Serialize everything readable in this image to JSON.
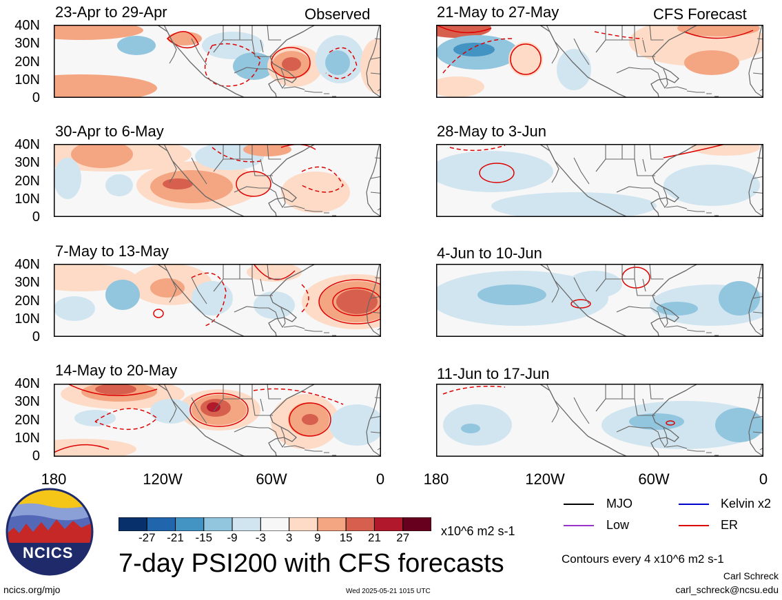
{
  "header": {
    "observed_label": "Observed",
    "forecast_label": "CFS Forecast"
  },
  "panels": [
    {
      "id": "p1",
      "title": "23-Apr to 29-Apr",
      "column": "observed"
    },
    {
      "id": "p2",
      "title": "30-Apr to 6-May",
      "column": "observed"
    },
    {
      "id": "p3",
      "title": "7-May to 13-May",
      "column": "observed"
    },
    {
      "id": "p4",
      "title": "14-May to 20-May",
      "column": "observed"
    },
    {
      "id": "p5",
      "title": "21-May to 27-May",
      "column": "forecast"
    },
    {
      "id": "p6",
      "title": "28-May to 3-Jun",
      "column": "forecast"
    },
    {
      "id": "p7",
      "title": "4-Jun to 10-Jun",
      "column": "forecast"
    },
    {
      "id": "p8",
      "title": "11-Jun to 17-Jun",
      "column": "forecast"
    }
  ],
  "lat_labels": [
    "40N",
    "30N",
    "20N",
    "10N",
    "0"
  ],
  "lon_labels": [
    "180",
    "120W",
    "60W",
    "0"
  ],
  "colorbar": {
    "ticks": [
      "-27",
      "-21",
      "-15",
      "-9",
      "-3",
      "3",
      "9",
      "15",
      "21",
      "27"
    ],
    "colors": [
      "#08306b",
      "#2166ac",
      "#4393c3",
      "#92c5de",
      "#d1e5f0",
      "#f7f7f7",
      "#fddbc7",
      "#f4a582",
      "#d6604d",
      "#b2182b",
      "#67001f"
    ],
    "units": "x10^6 m2 s-1"
  },
  "legend": [
    {
      "label": "MJO",
      "color": "#000000"
    },
    {
      "label": "Kelvin x2",
      "color": "#0000cc"
    },
    {
      "label": "Low",
      "color": "#9933cc"
    },
    {
      "label": "ER",
      "color": "#dd0000"
    }
  ],
  "main_title": "7-day PSI200 with CFS forecasts",
  "contour_note": "Contours every 4 x10^6 m2 s-1",
  "author_name": "Carl Schreck",
  "author_email": "carl_schreck@ncsu.edu",
  "site": "ncics.org/mjo",
  "timestamp": "Wed 2025-05-21 1015 UTC",
  "logo_text": "NCICS",
  "colors": {
    "red_fill_light": "#fddbc7",
    "red_fill_mid": "#f4a582",
    "red_fill_dark": "#d6604d",
    "blue_fill_light": "#d1e5f0",
    "blue_fill_mid": "#92c5de",
    "contour_er": "#dd0000"
  }
}
